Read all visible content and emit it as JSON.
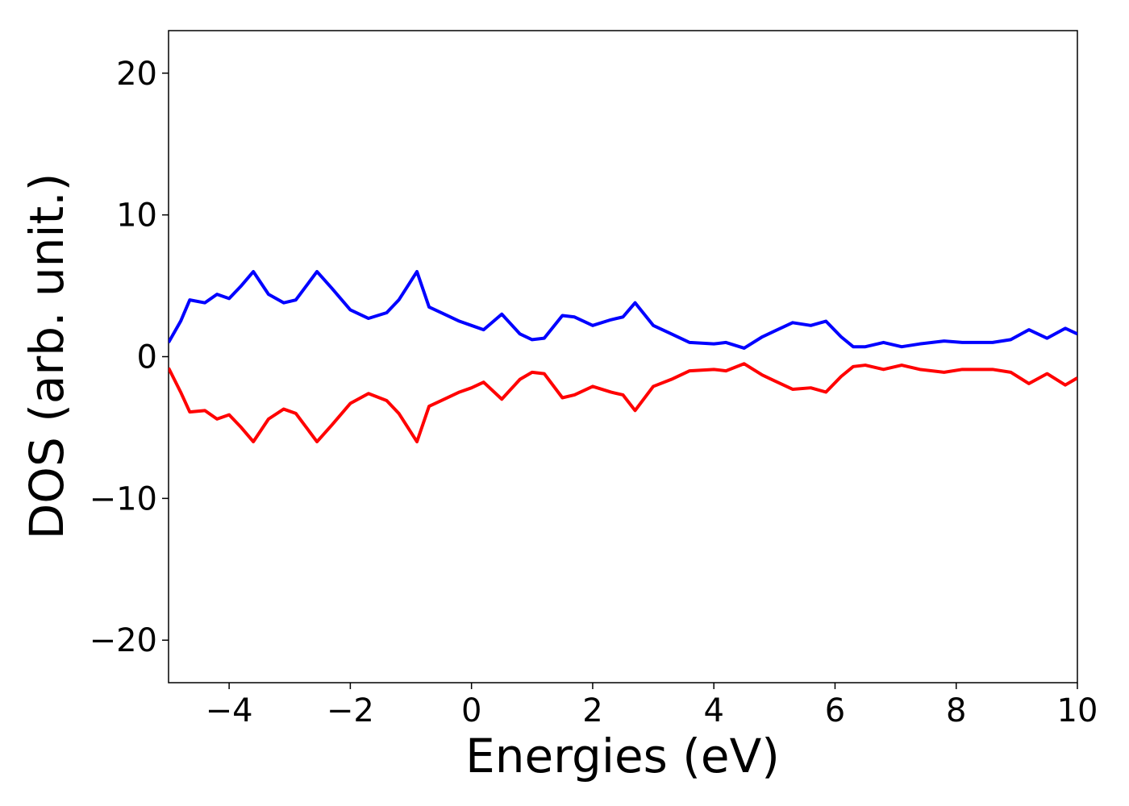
{
  "chart_data": {
    "type": "line",
    "x_label": "Energies (eV)",
    "y_label": "DOS (arb. unit.)",
    "x": [
      -5,
      -4.8,
      -4.65,
      -4.4,
      -4.2,
      -4.0,
      -3.8,
      -3.6,
      -3.35,
      -3.1,
      -2.9,
      -2.55,
      -2.3,
      -2.0,
      -1.7,
      -1.4,
      -1.2,
      -0.9,
      -0.7,
      -0.5,
      -0.2,
      0,
      0.2,
      0.5,
      0.8,
      1.0,
      1.2,
      1.5,
      1.7,
      2.0,
      2.3,
      2.5,
      2.7,
      3.0,
      3.3,
      3.6,
      4.0,
      4.2,
      4.5,
      4.8,
      5.0,
      5.3,
      5.6,
      5.85,
      6.1,
      6.3,
      6.5,
      6.8,
      7.1,
      7.4,
      7.8,
      8.1,
      8.6,
      8.9,
      9.2,
      9.5,
      9.8,
      10
    ],
    "series": [
      {
        "color": "#0000ff",
        "values": [
          1.0,
          2.5,
          4.0,
          3.8,
          4.4,
          4.1,
          5.0,
          6.0,
          4.4,
          3.8,
          4.0,
          6.0,
          4.8,
          3.3,
          2.7,
          3.1,
          4.0,
          6.0,
          3.5,
          3.1,
          2.5,
          2.2,
          1.9,
          3.0,
          1.6,
          1.2,
          1.3,
          2.9,
          2.8,
          2.2,
          2.6,
          2.8,
          3.8,
          2.2,
          1.6,
          1.0,
          0.9,
          1.0,
          0.6,
          1.4,
          1.8,
          2.4,
          2.2,
          2.5,
          1.4,
          0.7,
          0.7,
          1.0,
          0.7,
          0.9,
          1.1,
          1.0,
          1.0,
          1.2,
          1.9,
          1.3,
          2.0,
          1.6
        ]
      },
      {
        "color": "#ff0000",
        "values": [
          -0.8,
          -2.5,
          -3.9,
          -3.8,
          -4.4,
          -4.1,
          -5.0,
          -6.0,
          -4.4,
          -3.7,
          -4.0,
          -6.0,
          -4.8,
          -3.3,
          -2.6,
          -3.1,
          -4.0,
          -6.0,
          -3.5,
          -3.1,
          -2.5,
          -2.2,
          -1.8,
          -3.0,
          -1.6,
          -1.1,
          -1.2,
          -2.9,
          -2.7,
          -2.1,
          -2.5,
          -2.7,
          -3.8,
          -2.1,
          -1.6,
          -1.0,
          -0.9,
          -1.0,
          -0.5,
          -1.3,
          -1.7,
          -2.3,
          -2.2,
          -2.5,
          -1.4,
          -0.7,
          -0.6,
          -0.9,
          -0.6,
          -0.9,
          -1.1,
          -0.9,
          -0.9,
          -1.1,
          -1.9,
          -1.2,
          -2.0,
          -1.5
        ]
      }
    ],
    "xlim": [
      -5,
      10
    ],
    "xticks": [
      {
        "value": -4,
        "label": "−4"
      },
      {
        "value": -2,
        "label": "−2"
      },
      0,
      2,
      4,
      6,
      8,
      10
    ],
    "ylim": [
      -23,
      23
    ],
    "yticks": [
      {
        "value": -20,
        "label": "−20"
      },
      {
        "value": -10,
        "label": "−10"
      },
      0,
      10,
      20
    ],
    "grid": false
  }
}
